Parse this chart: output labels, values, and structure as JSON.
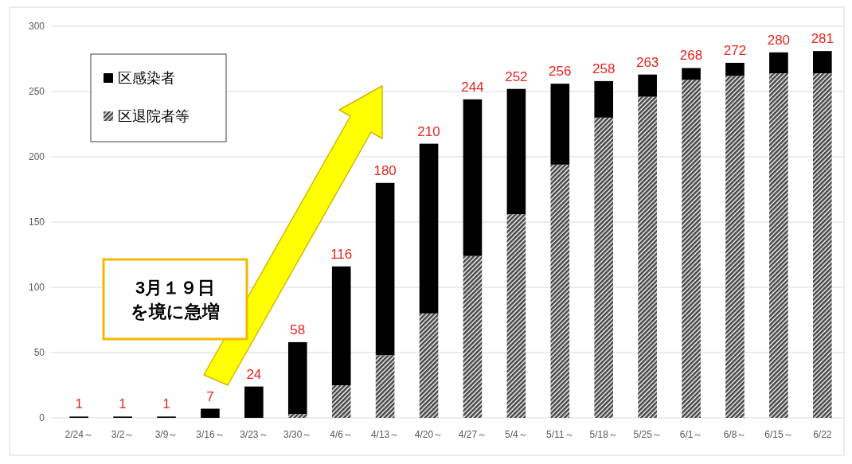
{
  "chart_data": {
    "type": "bar",
    "stacked": true,
    "categories": [
      "2/24～",
      "3/2～",
      "3/9～",
      "3/16～",
      "3/23～",
      "3/30～",
      "4/6～",
      "4/13～",
      "4/20～",
      "4/27～",
      "5/4～",
      "5/11～",
      "5/18～",
      "5/25～",
      "6/1～",
      "6/8～",
      "6/15～",
      "6/22"
    ],
    "series": [
      {
        "name": "区退院者等",
        "color": "#444444",
        "values": [
          0,
          0,
          0,
          0,
          0,
          3,
          25,
          48,
          80,
          124,
          156,
          194,
          230,
          246,
          259,
          262,
          264,
          264
        ]
      },
      {
        "name": "区感染者",
        "color": "#000000",
        "values": [
          1,
          1,
          1,
          7,
          24,
          55,
          91,
          132,
          130,
          120,
          96,
          62,
          28,
          17,
          9,
          10,
          16,
          17
        ]
      }
    ],
    "totals": [
      "1",
      "1",
      "1",
      "7",
      "24",
      "58",
      "116",
      "180",
      "210",
      "244",
      "252",
      "256",
      "258",
      "263",
      "268",
      "272",
      "280",
      "281"
    ],
    "ylim": [
      0,
      300
    ],
    "yticks": [
      0,
      50,
      100,
      150,
      200,
      250,
      300
    ],
    "grid": "y",
    "legend": "top left",
    "annotations": [
      "3月１９日",
      "を境に急増"
    ]
  }
}
